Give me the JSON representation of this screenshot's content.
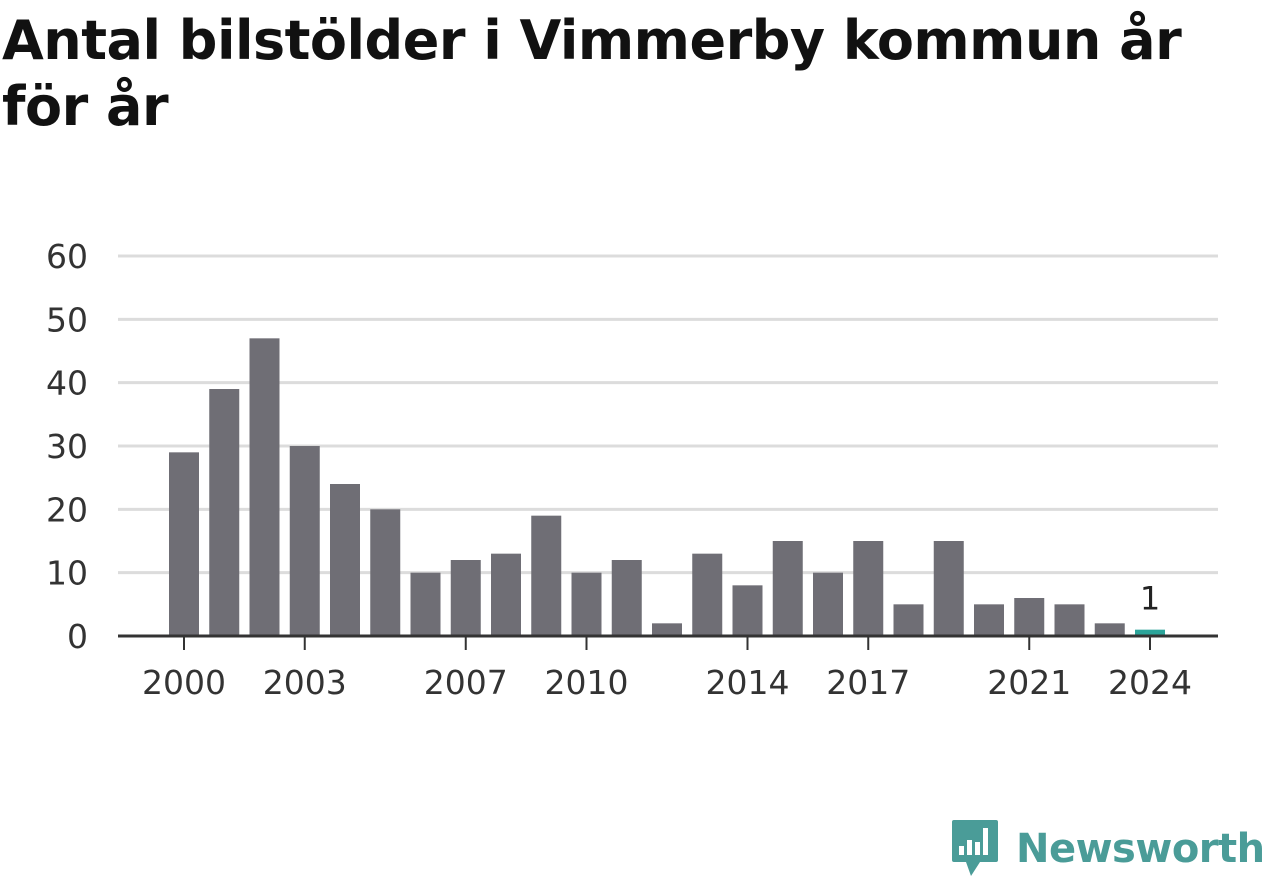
{
  "title": "Antal bilstölder i Vimmerby kommun år för år",
  "brand": {
    "name": "Newsworthy",
    "color": "#4a9c98"
  },
  "colors": {
    "bar": "#6f6e75",
    "highlight": "#2ca49a",
    "grid": "#dcdcdc",
    "axis": "#333333"
  },
  "chart_data": {
    "type": "bar",
    "categories": [
      "2000",
      "2001",
      "2002",
      "2003",
      "2004",
      "2005",
      "2006",
      "2007",
      "2008",
      "2009",
      "2010",
      "2011",
      "2012",
      "2013",
      "2014",
      "2015",
      "2016",
      "2017",
      "2018",
      "2019",
      "2020",
      "2021",
      "2022",
      "2023",
      "2024"
    ],
    "values": [
      29,
      39,
      47,
      30,
      24,
      20,
      10,
      12,
      13,
      19,
      10,
      12,
      2,
      13,
      8,
      15,
      10,
      15,
      5,
      15,
      5,
      6,
      5,
      2,
      1
    ],
    "xtick_labels": [
      "2000",
      "2003",
      "2007",
      "2010",
      "2014",
      "2017",
      "2021",
      "2024"
    ],
    "yticks": [
      0,
      10,
      20,
      30,
      40,
      50,
      60
    ],
    "ylim": [
      0,
      60
    ],
    "highlight": {
      "category": "2024",
      "label": "1"
    },
    "grid": true
  }
}
